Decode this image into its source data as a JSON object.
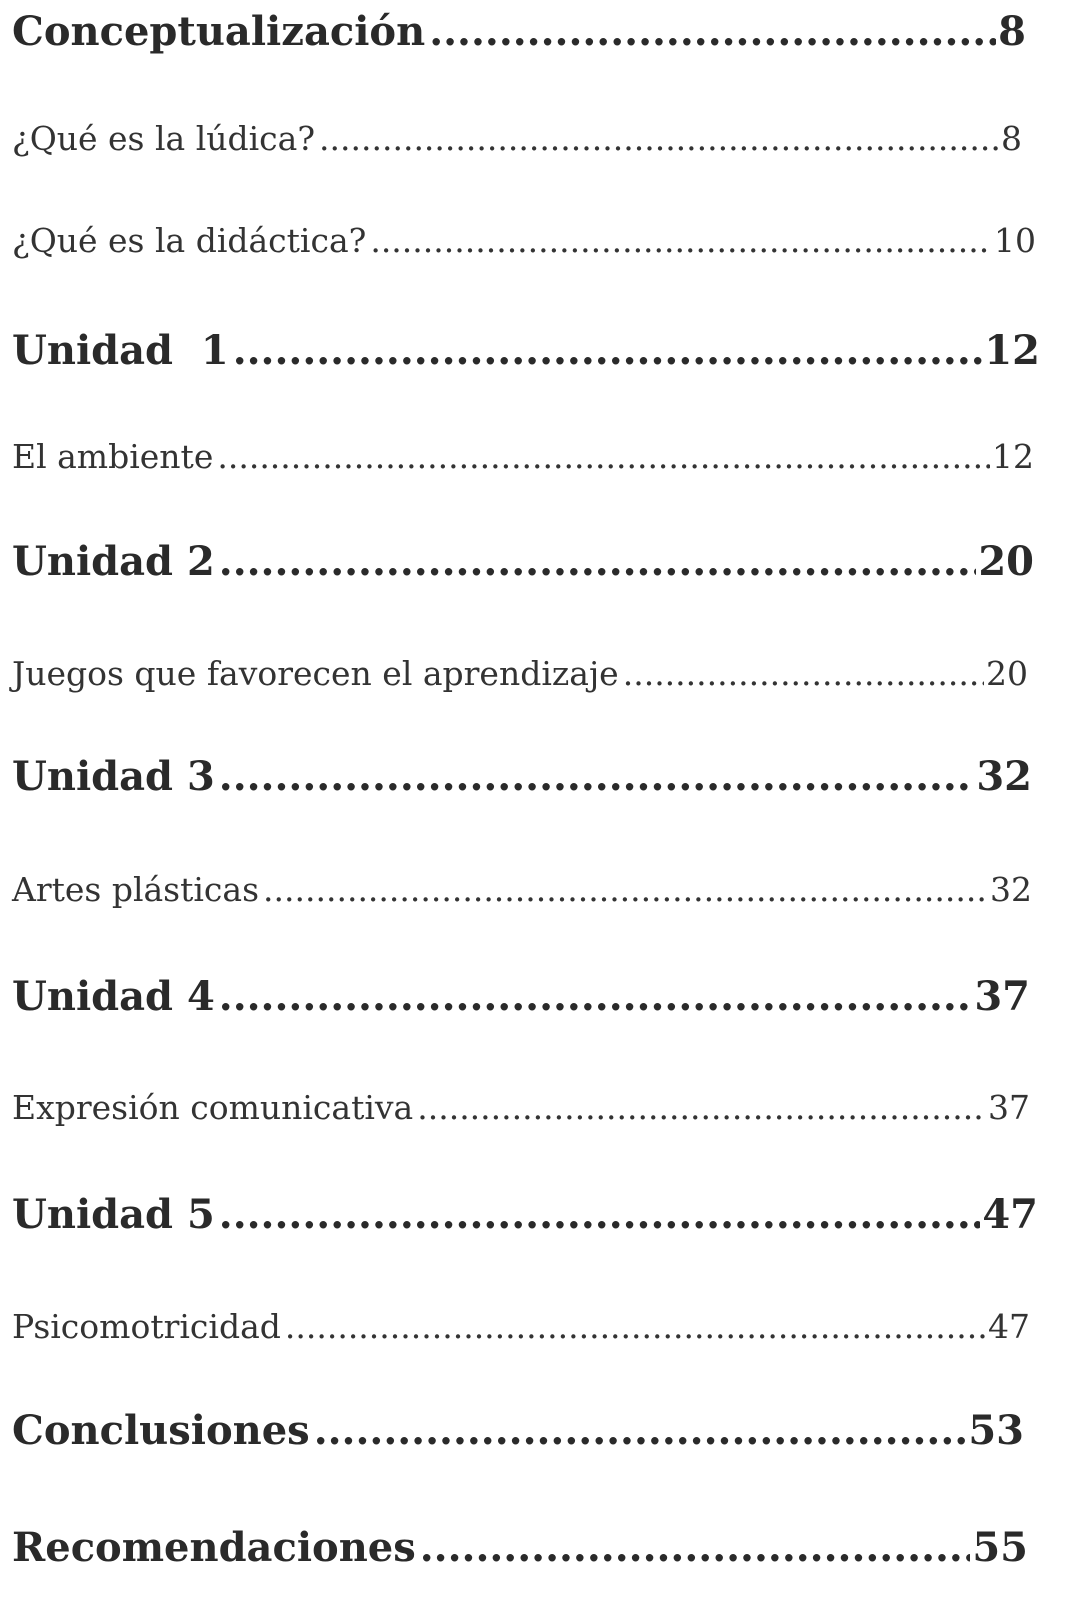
{
  "toc": {
    "entries": [
      {
        "label": "Conceptualización",
        "page": "8",
        "level": "heading"
      },
      {
        "label": "¿Qué es la lúdica?",
        "page": "8",
        "level": "sub"
      },
      {
        "label": "¿Qué es la didáctica?",
        "page": "10",
        "level": "sub"
      },
      {
        "label": "Unidad  1",
        "page": "12",
        "level": "heading"
      },
      {
        "label": "El ambiente",
        "page": "12",
        "level": "sub"
      },
      {
        "label": "Unidad 2",
        "page": "20",
        "level": "heading"
      },
      {
        "label": "Juegos que favorecen el aprendizaje",
        "page": "20",
        "level": "sub"
      },
      {
        "label": "Unidad 3",
        "page": "32",
        "level": "heading"
      },
      {
        "label": "Artes plásticas",
        "page": "32",
        "level": "sub"
      },
      {
        "label": "Unidad 4",
        "page": "37",
        "level": "heading"
      },
      {
        "label": "Expresión comunicativa",
        "page": "37",
        "level": "sub"
      },
      {
        "label": "Unidad 5",
        "page": "47",
        "level": "heading"
      },
      {
        "label": "Psicomotricidad",
        "page": "47",
        "level": "sub"
      },
      {
        "label": "Conclusiones",
        "page": "53",
        "level": "heading"
      },
      {
        "label": "Recomendaciones",
        "page": "55",
        "level": "heading"
      }
    ]
  }
}
